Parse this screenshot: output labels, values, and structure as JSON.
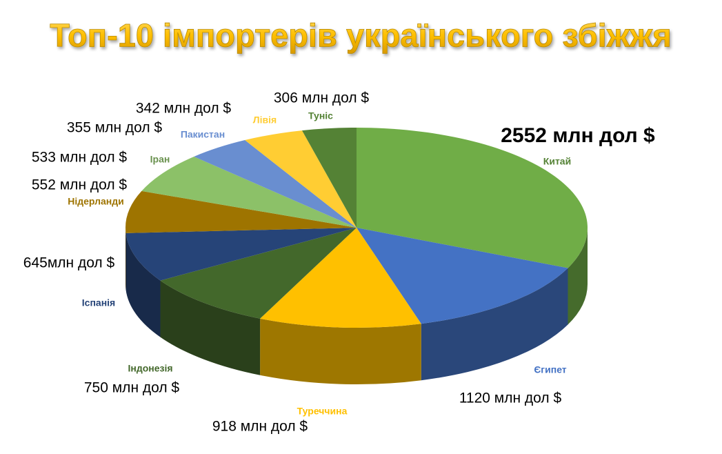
{
  "chart_data": {
    "type": "pie",
    "title": "Топ-10 імпортерів українського збіжжя",
    "categories": [
      "Китай",
      "Єгипет",
      "Туреччина",
      "Індонезія",
      "Іспанія",
      "Нідерланди",
      "Іран",
      "Пакистан",
      "Лівія",
      "Туніс"
    ],
    "values": [
      2552,
      1120,
      918,
      750,
      645,
      552,
      533,
      355,
      342,
      306
    ],
    "value_labels": [
      "2552 млн дол $",
      "1120 млн дол $",
      "918 млн дол $",
      "750 млн дол $",
      "645млн дол $",
      "552 млн дол $",
      "533 млн дол $",
      "355 млн дол $",
      "342 млн дол $",
      "306 млн дол $"
    ],
    "colors": [
      "#70ad47",
      "#4472c4",
      "#ffc000",
      "#43682b",
      "#264478",
      "#9e7400",
      "#8cc168",
      "#698ed0",
      "#ffcd33",
      "#548235"
    ]
  }
}
